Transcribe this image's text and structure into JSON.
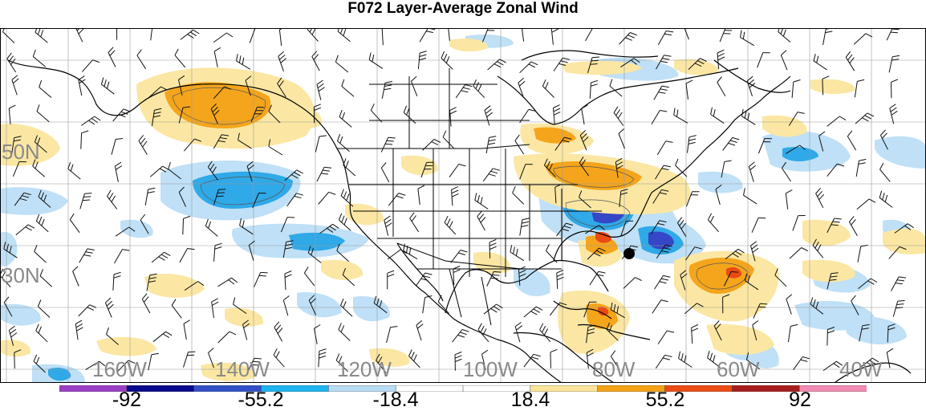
{
  "title": "F072 Layer-Average Zonal Wind",
  "lat_labels": [
    "50N",
    "30N"
  ],
  "lon_labels": [
    "160W",
    "140W",
    "120W",
    "100W",
    "80W",
    "60W",
    "40W"
  ],
  "colorbar": {
    "colors": [
      "#9b3fc4",
      "#0a0a8c",
      "#3350c8",
      "#1eb4ee",
      "#b9dcf5",
      "#ffffff",
      "#ffffff",
      "#fbe59a",
      "#f5a316",
      "#ec4c16",
      "#a81e1e",
      "#f28cb4"
    ],
    "labels": [
      "-92",
      "-55.2",
      "-18.4",
      "18.4",
      "55.2",
      "92"
    ]
  },
  "colors": {
    "neg_light": "#bfe0f6",
    "neg_mid": "#2fa9e8",
    "neg_strong": "#3546c6",
    "pos_light": "#fbe7a3",
    "pos_mid": "#f4a51c",
    "pos_strong": "#ea4a14"
  }
}
